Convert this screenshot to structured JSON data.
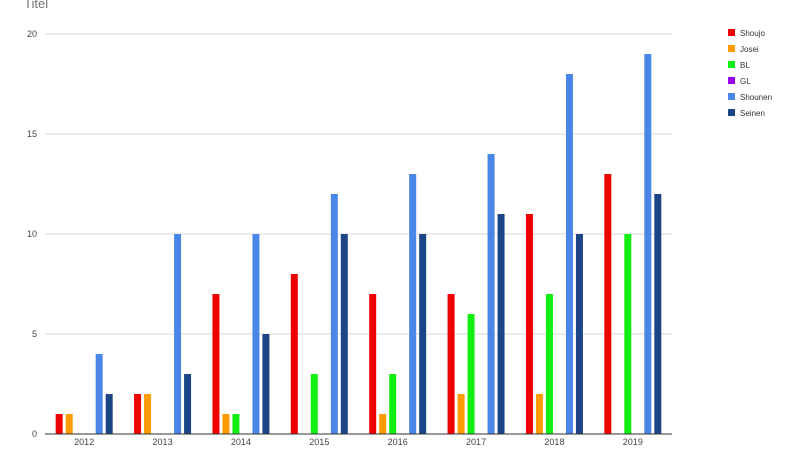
{
  "chart_data": {
    "type": "bar",
    "title": "Titel",
    "categories": [
      "2012",
      "2013",
      "2014",
      "2015",
      "2016",
      "2017",
      "2018",
      "2019"
    ],
    "ylim": [
      0,
      20
    ],
    "yticks": [
      0,
      5,
      10,
      15,
      20
    ],
    "grid": true,
    "legend_position": "right",
    "series": [
      {
        "name": "Shoujo",
        "color": "#ee0000",
        "values": [
          1,
          2,
          7,
          8,
          7,
          7,
          11,
          13
        ]
      },
      {
        "name": "Josei",
        "color": "#ff9a00",
        "values": [
          1,
          2,
          1,
          0,
          1,
          2,
          2,
          0
        ]
      },
      {
        "name": "BL",
        "color": "#11ee11",
        "values": [
          0,
          0,
          1,
          3,
          3,
          6,
          7,
          10
        ]
      },
      {
        "name": "GL",
        "color": "#9900ee",
        "values": [
          0,
          0,
          0,
          0,
          0,
          0,
          0,
          0
        ]
      },
      {
        "name": "Shounen",
        "color": "#4a86e8",
        "values": [
          4,
          10,
          10,
          12,
          13,
          14,
          18,
          19
        ]
      },
      {
        "name": "Seinen",
        "color": "#1c4587",
        "values": [
          2,
          3,
          5,
          10,
          10,
          11,
          10,
          12
        ]
      }
    ]
  }
}
